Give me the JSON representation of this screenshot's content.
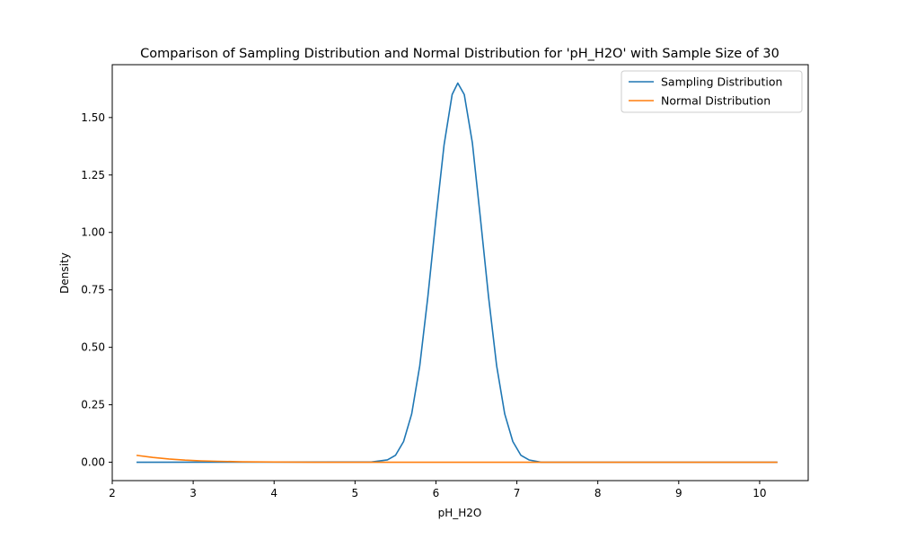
{
  "chart_data": {
    "type": "line",
    "title": "Comparison of Sampling Distribution and Normal Distribution for 'pH_H2O' with Sample Size of 30",
    "xlabel": "pH_H2O",
    "ylabel": "Density",
    "xlim": [
      2.0,
      10.6
    ],
    "ylim": [
      -0.08,
      1.73
    ],
    "xticks": [
      2,
      3,
      4,
      5,
      6,
      7,
      8,
      9,
      10
    ],
    "xtick_labels": [
      "2",
      "3",
      "4",
      "5",
      "6",
      "7",
      "8",
      "9",
      "10"
    ],
    "yticks": [
      0.0,
      0.25,
      0.5,
      0.75,
      1.0,
      1.25,
      1.5
    ],
    "ytick_labels": [
      "0.00",
      "0.25",
      "0.50",
      "0.75",
      "1.00",
      "1.25",
      "1.50"
    ],
    "grid": false,
    "legend": {
      "placement": "top-right"
    },
    "series": [
      {
        "name": "Sampling Distribution",
        "color": "#1f77b4",
        "x": [
          2.3,
          5.2,
          5.4,
          5.5,
          5.6,
          5.7,
          5.8,
          5.9,
          6.0,
          6.1,
          6.2,
          6.27,
          6.35,
          6.45,
          6.55,
          6.65,
          6.75,
          6.85,
          6.95,
          7.05,
          7.15,
          7.3,
          10.22
        ],
        "y": [
          0.0,
          0.001,
          0.01,
          0.03,
          0.09,
          0.21,
          0.42,
          0.72,
          1.06,
          1.38,
          1.6,
          1.65,
          1.6,
          1.39,
          1.06,
          0.72,
          0.42,
          0.21,
          0.09,
          0.03,
          0.01,
          0.0,
          0.0
        ]
      },
      {
        "name": "Normal Distribution",
        "color": "#ff7f0e",
        "x": [
          2.3,
          2.5,
          2.7,
          2.9,
          3.1,
          3.3,
          3.6,
          4.0,
          4.5,
          10.22
        ],
        "y": [
          0.03,
          0.021,
          0.014,
          0.009,
          0.006,
          0.004,
          0.002,
          0.001,
          0.0,
          0.0
        ]
      }
    ]
  }
}
